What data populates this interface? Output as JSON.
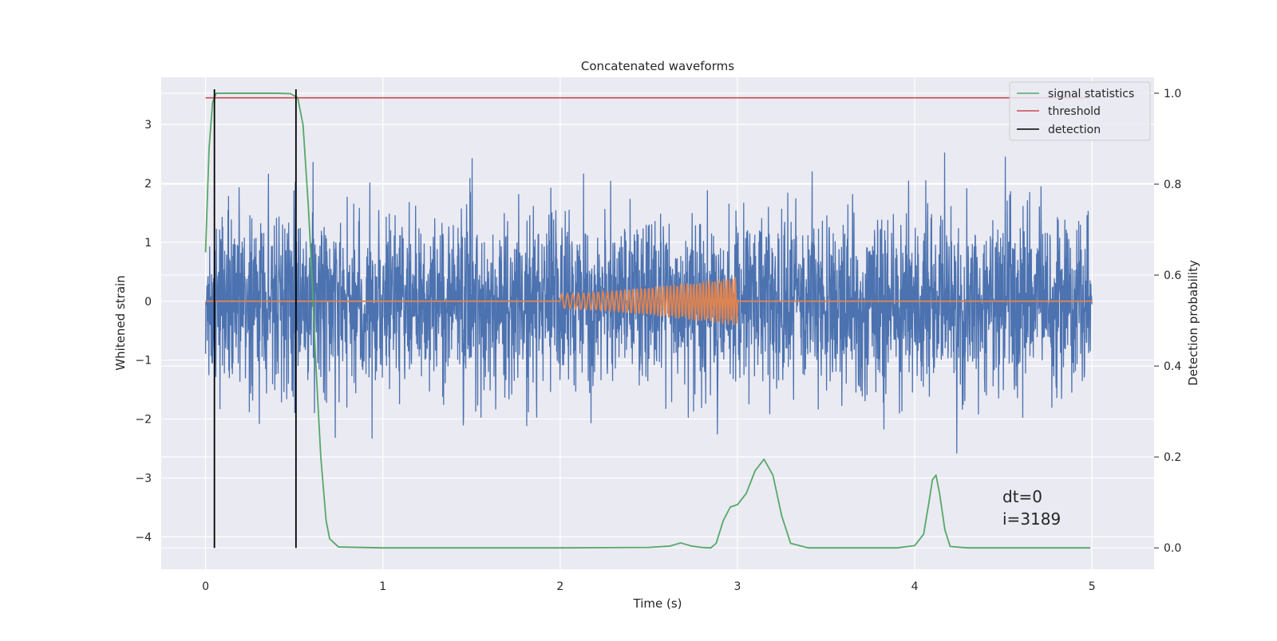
{
  "chart_data": {
    "type": "line",
    "title": "Concatenated waveforms",
    "xlabel": "Time (s)",
    "ylabel": "Whitened strain",
    "y2label": "Detection probability",
    "xlim": [
      -0.25,
      5.35
    ],
    "ylim": [
      -4.55,
      3.8
    ],
    "y2lim": [
      -0.047,
      1.035
    ],
    "xticks": [
      "0",
      "1",
      "2",
      "3",
      "4",
      "5"
    ],
    "yticks": [
      "3",
      "2",
      "1",
      "0",
      "−1",
      "−2",
      "−3",
      "−4"
    ],
    "y2ticks": [
      "1.0",
      "0.8",
      "0.6",
      "0.4",
      "0.2",
      "0.0"
    ],
    "grid": true,
    "legend_position": "top-right",
    "series": [
      {
        "name": "",
        "axis": "left",
        "color": "#4c72b0",
        "description_kind": "noise",
        "x_range": [
          0,
          5
        ],
        "typical_amplitude": 1.2
      },
      {
        "name": "",
        "axis": "left",
        "color": "#dd8452",
        "description_kind": "chirp",
        "x_range": [
          2,
          3
        ],
        "amplitude_range": [
          0.12,
          0.42
        ]
      },
      {
        "name": "signal statistics",
        "axis": "right",
        "color": "#55a868",
        "x": [
          0.0,
          0.02,
          0.04,
          0.06,
          0.1,
          0.2,
          0.3,
          0.4,
          0.48,
          0.52,
          0.55,
          0.58,
          0.6,
          0.62,
          0.65,
          0.68,
          0.7,
          0.75,
          1.0,
          2.0,
          2.5,
          2.62,
          2.68,
          2.74,
          2.8,
          2.85,
          2.88,
          2.92,
          2.96,
          3.0,
          3.05,
          3.1,
          3.15,
          3.2,
          3.25,
          3.3,
          3.4,
          3.6,
          3.9,
          4.0,
          4.05,
          4.08,
          4.1,
          4.12,
          4.14,
          4.17,
          4.2,
          4.3,
          4.99
        ],
        "y": [
          0.65,
          0.88,
          0.98,
          1.0,
          1.0,
          1.0,
          1.0,
          1.0,
          0.999,
          0.99,
          0.93,
          0.75,
          0.6,
          0.42,
          0.2,
          0.06,
          0.02,
          0.002,
          0.0,
          0.0,
          0.001,
          0.004,
          0.011,
          0.004,
          0.001,
          0.0,
          0.01,
          0.06,
          0.09,
          0.095,
          0.12,
          0.17,
          0.195,
          0.16,
          0.07,
          0.01,
          0.0,
          0.0,
          0.0,
          0.005,
          0.03,
          0.1,
          0.15,
          0.16,
          0.12,
          0.04,
          0.003,
          0.0,
          0.0
        ]
      },
      {
        "name": "threshold",
        "axis": "right",
        "color": "#c44e52",
        "x": [
          0.0,
          4.99
        ],
        "y": [
          0.99,
          0.99
        ]
      },
      {
        "name": "detection",
        "axis": "right",
        "color": "#000000",
        "x": [
          0.05,
          0.51
        ],
        "y_range": [
          0.0,
          1.0
        ]
      }
    ],
    "annotations": [
      "dt=0",
      "i=3189"
    ]
  }
}
